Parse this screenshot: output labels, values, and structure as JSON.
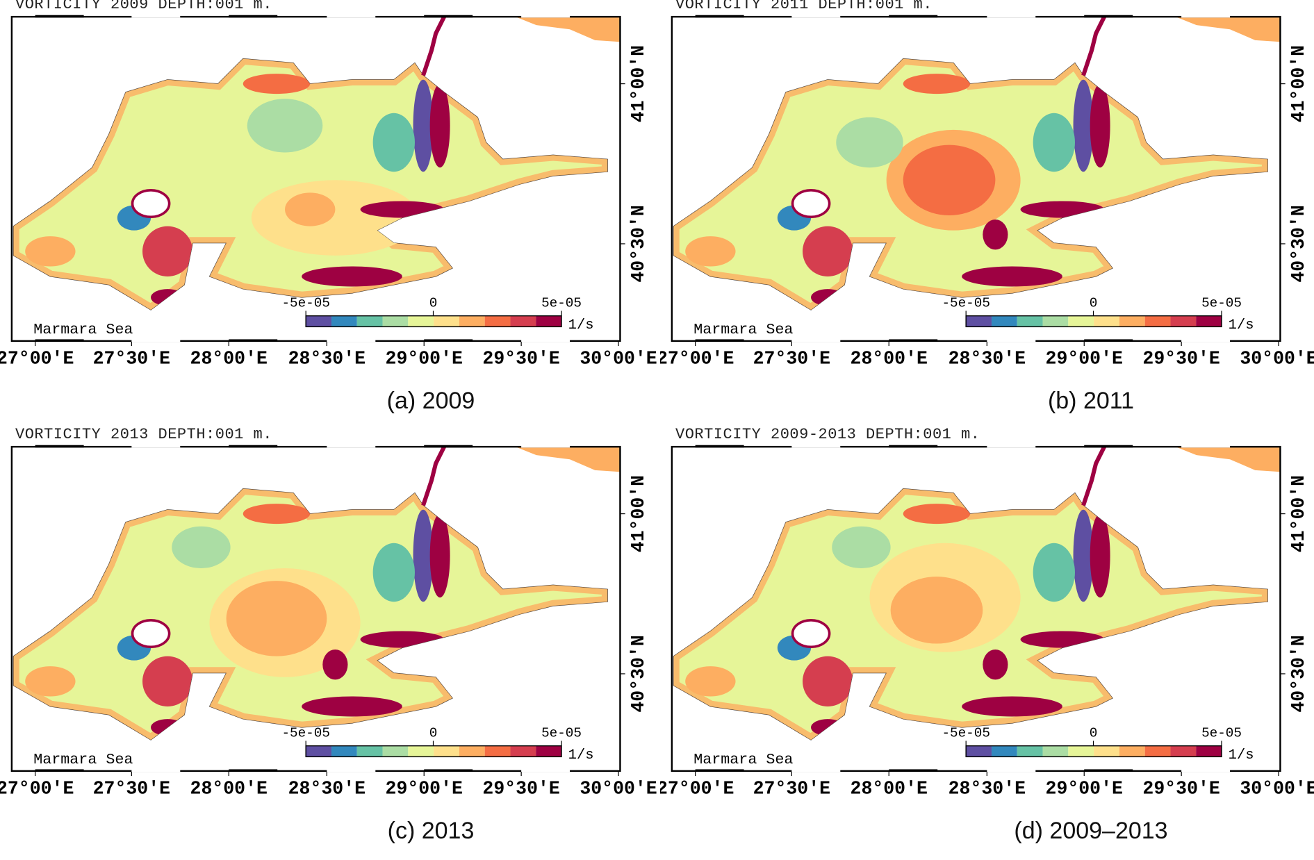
{
  "colorbar": {
    "min_label": "-5e-05",
    "mid_label": "0",
    "max_label": "5e-05",
    "unit": "1/s",
    "colors": [
      "#5e4fa2",
      "#3288bd",
      "#66c2a5",
      "#abdda4",
      "#e6f598",
      "#fee08b",
      "#fdae61",
      "#f46d43",
      "#d53e4f",
      "#9e0142"
    ]
  },
  "lon_ticks": [
    "27°00'E",
    "27°30'E",
    "28°00'E",
    "28°30'E",
    "29°00'E",
    "29°30'E",
    "30°00'E"
  ],
  "lat_ticks": [
    "41°00'N",
    "40°30'N"
  ],
  "region_label": "Marmara Sea",
  "chart_data": [
    {
      "type": "heatmap",
      "title": "VORTICITY 2009 DEPTH:001 m.",
      "caption": "(a) 2009",
      "variable": "vorticity",
      "units": "1/s",
      "range": [
        -5e-05,
        5e-05
      ]
    },
    {
      "type": "heatmap",
      "title": "VORTICITY 2011 DEPTH:001 m.",
      "caption": "(b) 2011",
      "variable": "vorticity",
      "units": "1/s",
      "range": [
        -5e-05,
        5e-05
      ]
    },
    {
      "type": "heatmap",
      "title": "VORTICITY 2013 DEPTH:001 m.",
      "caption": "(c) 2013",
      "variable": "vorticity",
      "units": "1/s",
      "range": [
        -5e-05,
        5e-05
      ]
    },
    {
      "type": "heatmap",
      "title": "VORTICITY 2009-2013 DEPTH:001 m.",
      "caption": "(d) 2009–2013",
      "variable": "vorticity",
      "units": "1/s",
      "range": [
        -5e-05,
        5e-05
      ]
    }
  ]
}
